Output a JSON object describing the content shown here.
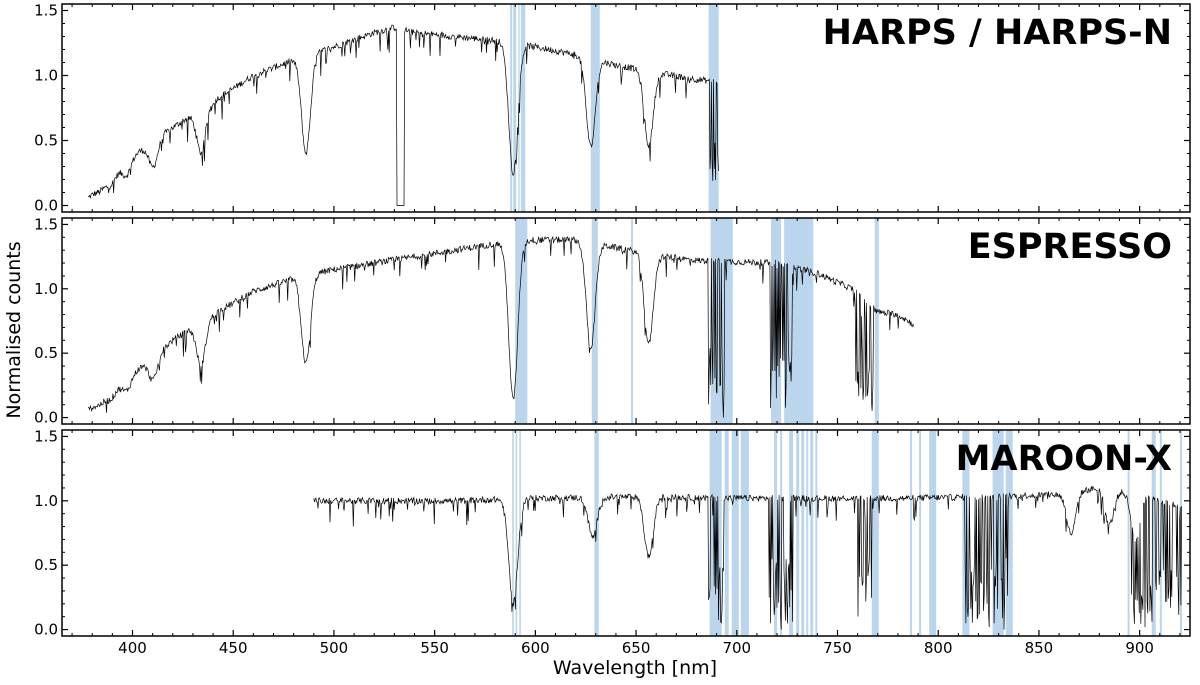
{
  "chart_data": {
    "type": "line",
    "xlabel": "Wavelength [nm]",
    "ylabel": "Normalised counts",
    "xlim": [
      365,
      925
    ],
    "ylim": [
      -0.05,
      1.55
    ],
    "x_ticks": [
      400,
      450,
      500,
      550,
      600,
      650,
      700,
      750,
      800,
      850,
      900
    ],
    "y_ticks": [
      0.0,
      0.5,
      1.0,
      1.5
    ],
    "y_tick_labels": [
      "0.0",
      "0.5",
      "1.0",
      "1.5"
    ],
    "legend": "none",
    "grid": false,
    "band_color": "#b4d2ea",
    "line_color": "#000000",
    "panels": [
      {
        "title": "HARPS / HARPS-N",
        "series": [
          {
            "kind": "spectrum",
            "range": [
              378,
              691
            ],
            "envelope": [
              [
                378,
                0.06
              ],
              [
                390,
                0.22
              ],
              [
                400,
                0.38
              ],
              [
                420,
                0.6
              ],
              [
                440,
                0.8
              ],
              [
                460,
                1.0
              ],
              [
                480,
                1.12
              ],
              [
                500,
                1.22
              ],
              [
                520,
                1.33
              ],
              [
                530,
                1.37
              ],
              [
                540,
                1.33
              ],
              [
                560,
                1.3
              ],
              [
                580,
                1.27
              ],
              [
                600,
                1.22
              ],
              [
                620,
                1.16
              ],
              [
                640,
                1.08
              ],
              [
                660,
                1.02
              ],
              [
                680,
                0.97
              ],
              [
                691,
                0.95
              ]
            ],
            "lines": [
              [
                383.5,
                0.2
              ],
              [
                388.9,
                0.25
              ],
              [
                397,
                0.3
              ],
              [
                410.2,
                0.4
              ],
              [
                434,
                0.45
              ],
              [
                486.1,
                0.65
              ],
              [
                656.3,
                0.55
              ],
              [
                589,
                0.8
              ],
              [
                627.5,
                0.6
              ]
            ],
            "gap": [
              531,
              535
            ],
            "telluric": [
              [
                686,
                691
              ]
            ]
          }
        ],
        "bands": [
          [
            587.5,
            588.5
          ],
          [
            589,
            590.5
          ],
          [
            591.5,
            592.2
          ],
          [
            592.8,
            595
          ],
          [
            627.5,
            632
          ],
          [
            686,
            691
          ]
        ]
      },
      {
        "title": "ESPRESSO",
        "series": [
          {
            "kind": "spectrum",
            "range": [
              378,
              788
            ],
            "envelope": [
              [
                378,
                0.06
              ],
              [
                390,
                0.2
              ],
              [
                400,
                0.34
              ],
              [
                420,
                0.6
              ],
              [
                440,
                0.8
              ],
              [
                460,
                0.98
              ],
              [
                480,
                1.08
              ],
              [
                500,
                1.15
              ],
              [
                520,
                1.2
              ],
              [
                540,
                1.25
              ],
              [
                560,
                1.3
              ],
              [
                580,
                1.35
              ],
              [
                600,
                1.38
              ],
              [
                620,
                1.38
              ],
              [
                640,
                1.32
              ],
              [
                660,
                1.26
              ],
              [
                680,
                1.22
              ],
              [
                700,
                1.21
              ],
              [
                720,
                1.2
              ],
              [
                740,
                1.12
              ],
              [
                760,
                0.98
              ],
              [
                770,
                0.82
              ],
              [
                780,
                0.8
              ],
              [
                788,
                0.72
              ]
            ],
            "lines": [
              [
                383.5,
                0.2
              ],
              [
                388.9,
                0.25
              ],
              [
                397,
                0.3
              ],
              [
                410.2,
                0.38
              ],
              [
                434,
                0.45
              ],
              [
                486.1,
                0.62
              ],
              [
                656.3,
                0.55
              ],
              [
                589,
                0.9
              ],
              [
                627.5,
                0.6
              ]
            ],
            "telluric": [
              [
                686,
                694
              ],
              [
                716,
                728
              ],
              [
                759,
                768
              ]
            ]
          }
        ],
        "bands": [
          [
            590,
            596
          ],
          [
            628,
            631
          ],
          [
            647.5,
            648.5
          ],
          [
            687,
            698
          ],
          [
            717,
            722
          ],
          [
            723.5,
            738
          ],
          [
            768.5,
            770.5
          ]
        ]
      },
      {
        "title": "MAROON-X",
        "series": [
          {
            "kind": "spectrum",
            "range": [
              490,
              921
            ],
            "envelope": [
              [
                490,
                1.0
              ],
              [
                520,
                1.0
              ],
              [
                560,
                1.0
              ],
              [
                580,
                1.01
              ],
              [
                600,
                1.02
              ],
              [
                640,
                1.03
              ],
              [
                660,
                1.03
              ],
              [
                700,
                1.02
              ],
              [
                740,
                1.02
              ],
              [
                780,
                1.02
              ],
              [
                820,
                1.03
              ],
              [
                860,
                1.05
              ],
              [
                880,
                1.1
              ],
              [
                900,
                1.05
              ],
              [
                921,
                0.95
              ]
            ],
            "lines": [
              [
                589,
                0.8
              ],
              [
                656.3,
                0.45
              ],
              [
                628.5,
                0.3
              ],
              [
                866,
                0.3
              ],
              [
                885,
                0.25
              ],
              [
                898,
                0.35
              ]
            ],
            "telluric": [
              [
                686,
                694
              ],
              [
                716,
                728
              ],
              [
                759,
                768
              ],
              [
                813,
                835
              ],
              [
                896,
                921
              ]
            ]
          }
        ],
        "bands": [
          [
            588.5,
            589.3
          ],
          [
            590.2,
            591
          ],
          [
            592,
            592.8
          ],
          [
            629.3,
            631.5
          ],
          [
            686.5,
            692.5
          ],
          [
            694,
            696
          ],
          [
            697.5,
            701
          ],
          [
            702,
            706
          ],
          [
            718.5,
            720
          ],
          [
            721.5,
            722.5
          ],
          [
            726,
            728
          ],
          [
            729.5,
            731
          ],
          [
            732,
            733.5
          ],
          [
            734.5,
            735.5
          ],
          [
            736.5,
            738
          ],
          [
            739,
            740
          ],
          [
            767,
            770.5
          ],
          [
            786,
            787
          ],
          [
            790.5,
            791.5
          ],
          [
            795.5,
            799
          ],
          [
            812,
            815.5
          ],
          [
            827,
            832.5
          ],
          [
            833.5,
            837
          ],
          [
            894,
            895
          ],
          [
            906,
            908
          ],
          [
            910,
            911
          ],
          [
            920,
            921
          ]
        ]
      }
    ]
  }
}
